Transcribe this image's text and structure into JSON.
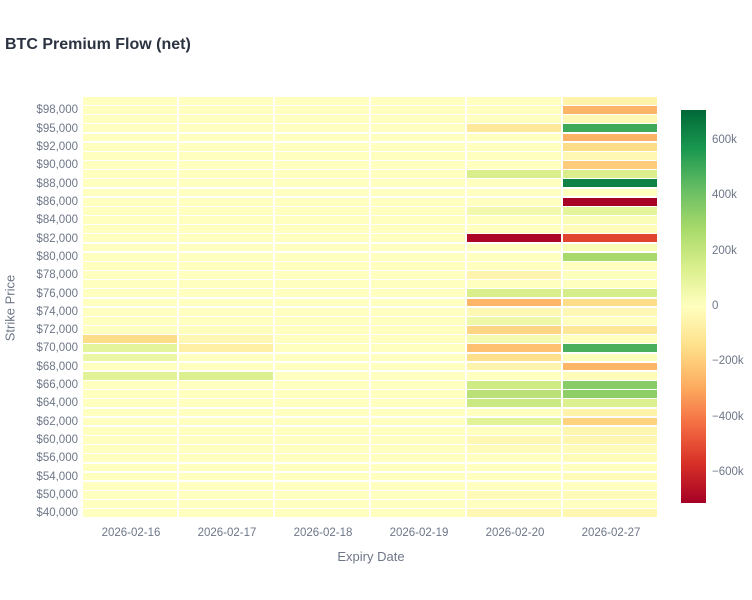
{
  "chart_data": {
    "type": "heatmap",
    "title": "BTC Premium Flow (net)",
    "xlabel": "Expiry Date",
    "ylabel": "Strike Price",
    "x_categories": [
      "2026-02-16",
      "2026-02-17",
      "2026-02-18",
      "2026-02-19",
      "2026-02-20",
      "2026-02-27"
    ],
    "values_unit": "thousands",
    "zmin": -710,
    "zmax": 710,
    "colorscale_name": "RdYlGn",
    "colorscale": [
      "#a50026",
      "#d73027",
      "#f46d43",
      "#fdae61",
      "#fee08b",
      "#ffffbf",
      "#d9ef8b",
      "#a6d96a",
      "#66bd63",
      "#1a9850",
      "#006837"
    ],
    "colorbar": {
      "tick_values": [
        600,
        400,
        200,
        0,
        -200,
        -400,
        -600
      ],
      "tick_labels": [
        "600k",
        "400k",
        "200k",
        "0",
        "−200k",
        "−400k",
        "−600k"
      ]
    },
    "rows": [
      {
        "label": "",
        "values": [
          0,
          0,
          0,
          0,
          0,
          -60
        ]
      },
      {
        "label": "$98,000",
        "values": [
          0,
          0,
          0,
          0,
          0,
          -260
        ]
      },
      {
        "label": "",
        "values": [
          0,
          0,
          0,
          0,
          0,
          -30
        ]
      },
      {
        "label": "$95,000",
        "values": [
          0,
          0,
          0,
          0,
          -100,
          500
        ]
      },
      {
        "label": "",
        "values": [
          0,
          0,
          0,
          0,
          0,
          -270
        ]
      },
      {
        "label": "$92,000",
        "values": [
          0,
          0,
          0,
          0,
          0,
          -150
        ]
      },
      {
        "label": "",
        "values": [
          0,
          0,
          0,
          0,
          0,
          -30
        ]
      },
      {
        "label": "$90,000",
        "values": [
          0,
          0,
          0,
          0,
          0,
          -200
        ]
      },
      {
        "label": "",
        "values": [
          0,
          0,
          0,
          0,
          140,
          140
        ]
      },
      {
        "label": "$88,000",
        "values": [
          0,
          0,
          0,
          0,
          0,
          630
        ]
      },
      {
        "label": "",
        "values": [
          0,
          0,
          0,
          0,
          0,
          0
        ]
      },
      {
        "label": "$86,000",
        "values": [
          0,
          0,
          0,
          0,
          0,
          -705
        ]
      },
      {
        "label": "",
        "values": [
          0,
          0,
          0,
          0,
          50,
          100
        ]
      },
      {
        "label": "$84,000",
        "values": [
          0,
          0,
          0,
          0,
          0,
          20
        ]
      },
      {
        "label": "",
        "values": [
          0,
          0,
          0,
          0,
          0,
          -20
        ]
      },
      {
        "label": "$82,000",
        "values": [
          0,
          0,
          0,
          0,
          -690,
          -520
        ]
      },
      {
        "label": "",
        "values": [
          0,
          0,
          0,
          0,
          0,
          20
        ]
      },
      {
        "label": "$80,000",
        "values": [
          0,
          0,
          0,
          0,
          0,
          280
        ]
      },
      {
        "label": "",
        "values": [
          0,
          0,
          0,
          0,
          0,
          0
        ]
      },
      {
        "label": "$78,000",
        "values": [
          0,
          0,
          0,
          0,
          -50,
          10
        ]
      },
      {
        "label": "",
        "values": [
          0,
          0,
          0,
          0,
          0,
          0
        ]
      },
      {
        "label": "$76,000",
        "values": [
          0,
          0,
          0,
          0,
          140,
          150
        ]
      },
      {
        "label": "",
        "values": [
          0,
          0,
          0,
          0,
          -260,
          -150
        ]
      },
      {
        "label": "$74,000",
        "values": [
          0,
          0,
          0,
          0,
          -30,
          -30
        ]
      },
      {
        "label": "",
        "values": [
          0,
          0,
          0,
          0,
          60,
          0
        ]
      },
      {
        "label": "$72,000",
        "values": [
          0,
          -10,
          0,
          0,
          -170,
          -110
        ]
      },
      {
        "label": "",
        "values": [
          -150,
          -30,
          0,
          0,
          40,
          0
        ]
      },
      {
        "label": "$70,000",
        "values": [
          100,
          -70,
          0,
          0,
          -230,
          480
        ]
      },
      {
        "label": "",
        "values": [
          70,
          0,
          0,
          0,
          -140,
          10
        ]
      },
      {
        "label": "$68,000",
        "values": [
          0,
          0,
          0,
          0,
          -50,
          -260
        ]
      },
      {
        "label": "",
        "values": [
          110,
          130,
          0,
          0,
          0,
          -20
        ]
      },
      {
        "label": "$66,000",
        "values": [
          0,
          0,
          0,
          0,
          170,
          350
        ]
      },
      {
        "label": "",
        "values": [
          0,
          0,
          0,
          0,
          230,
          340
        ]
      },
      {
        "label": "$64,000",
        "values": [
          0,
          0,
          0,
          0,
          180,
          130
        ]
      },
      {
        "label": "",
        "values": [
          0,
          0,
          0,
          0,
          0,
          -60
        ]
      },
      {
        "label": "$62,000",
        "values": [
          0,
          0,
          0,
          0,
          110,
          -180
        ]
      },
      {
        "label": "",
        "values": [
          0,
          0,
          0,
          0,
          0,
          -40
        ]
      },
      {
        "label": "$60,000",
        "values": [
          0,
          0,
          0,
          0,
          -30,
          -40
        ]
      },
      {
        "label": "",
        "values": [
          0,
          0,
          0,
          0,
          -20,
          -20
        ]
      },
      {
        "label": "$56,000",
        "values": [
          0,
          0,
          0,
          0,
          0,
          -15
        ]
      },
      {
        "label": "",
        "values": [
          0,
          0,
          0,
          0,
          0,
          0
        ]
      },
      {
        "label": "$54,000",
        "values": [
          0,
          0,
          0,
          0,
          0,
          -15
        ]
      },
      {
        "label": "",
        "values": [
          0,
          0,
          0,
          0,
          0,
          0
        ]
      },
      {
        "label": "$50,000",
        "values": [
          0,
          0,
          0,
          0,
          -25,
          -25
        ]
      },
      {
        "label": "",
        "values": [
          0,
          0,
          0,
          0,
          0,
          0
        ]
      },
      {
        "label": "$40,000",
        "values": [
          0,
          0,
          0,
          0,
          -30,
          -40
        ]
      }
    ],
    "text_colors": {
      "title": "#2b3240",
      "axis_text": "#6e7687"
    }
  }
}
